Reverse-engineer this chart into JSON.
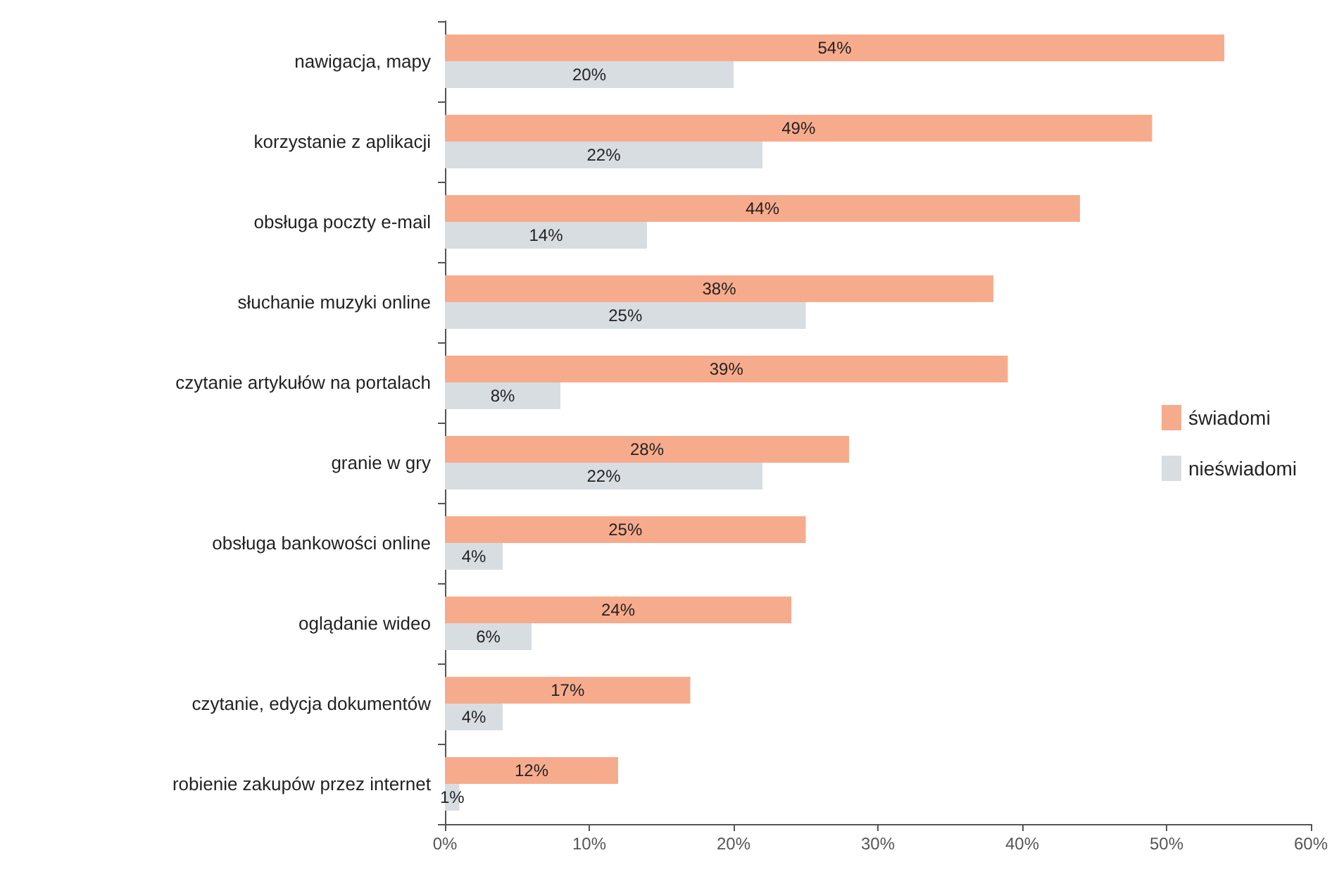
{
  "chart_data": {
    "type": "bar",
    "orientation": "horizontal",
    "categories": [
      "nawigacja, mapy",
      "korzystanie z aplikacji",
      "obsługa poczty e-mail",
      "słuchanie muzyki online",
      "czytanie artykułów na portalach",
      "granie w gry",
      "obsługa bankowości online",
      "oglądanie wideo",
      "czytanie, edycja dokumentów",
      "robienie zakupów przez internet"
    ],
    "series": [
      {
        "name": "świadomi",
        "color": "#f7ab8d",
        "values": [
          54,
          49,
          44,
          38,
          39,
          28,
          25,
          24,
          17,
          12
        ],
        "value_labels": [
          "54%",
          "49%",
          "44%",
          "38%",
          "39%",
          "28%",
          "25%",
          "24%",
          "17%",
          "12%"
        ]
      },
      {
        "name": "nieświadomi",
        "color": "#d8dde2",
        "values": [
          20,
          22,
          14,
          25,
          8,
          22,
          4,
          6,
          4,
          1
        ],
        "value_labels": [
          "20%",
          "22%",
          "14%",
          "25%",
          "8%",
          "22%",
          "4%",
          "6%",
          "4%",
          "1%"
        ]
      }
    ],
    "xlim": [
      0,
      60
    ],
    "xticks": [
      {
        "value": 0,
        "label": "0%"
      },
      {
        "value": 10,
        "label": "10%"
      },
      {
        "value": 20,
        "label": "20%"
      },
      {
        "value": 30,
        "label": "30%"
      },
      {
        "value": 40,
        "label": "40%"
      },
      {
        "value": 50,
        "label": "50%"
      },
      {
        "value": 60,
        "label": "60%"
      }
    ],
    "grid": false,
    "legend": "right"
  }
}
